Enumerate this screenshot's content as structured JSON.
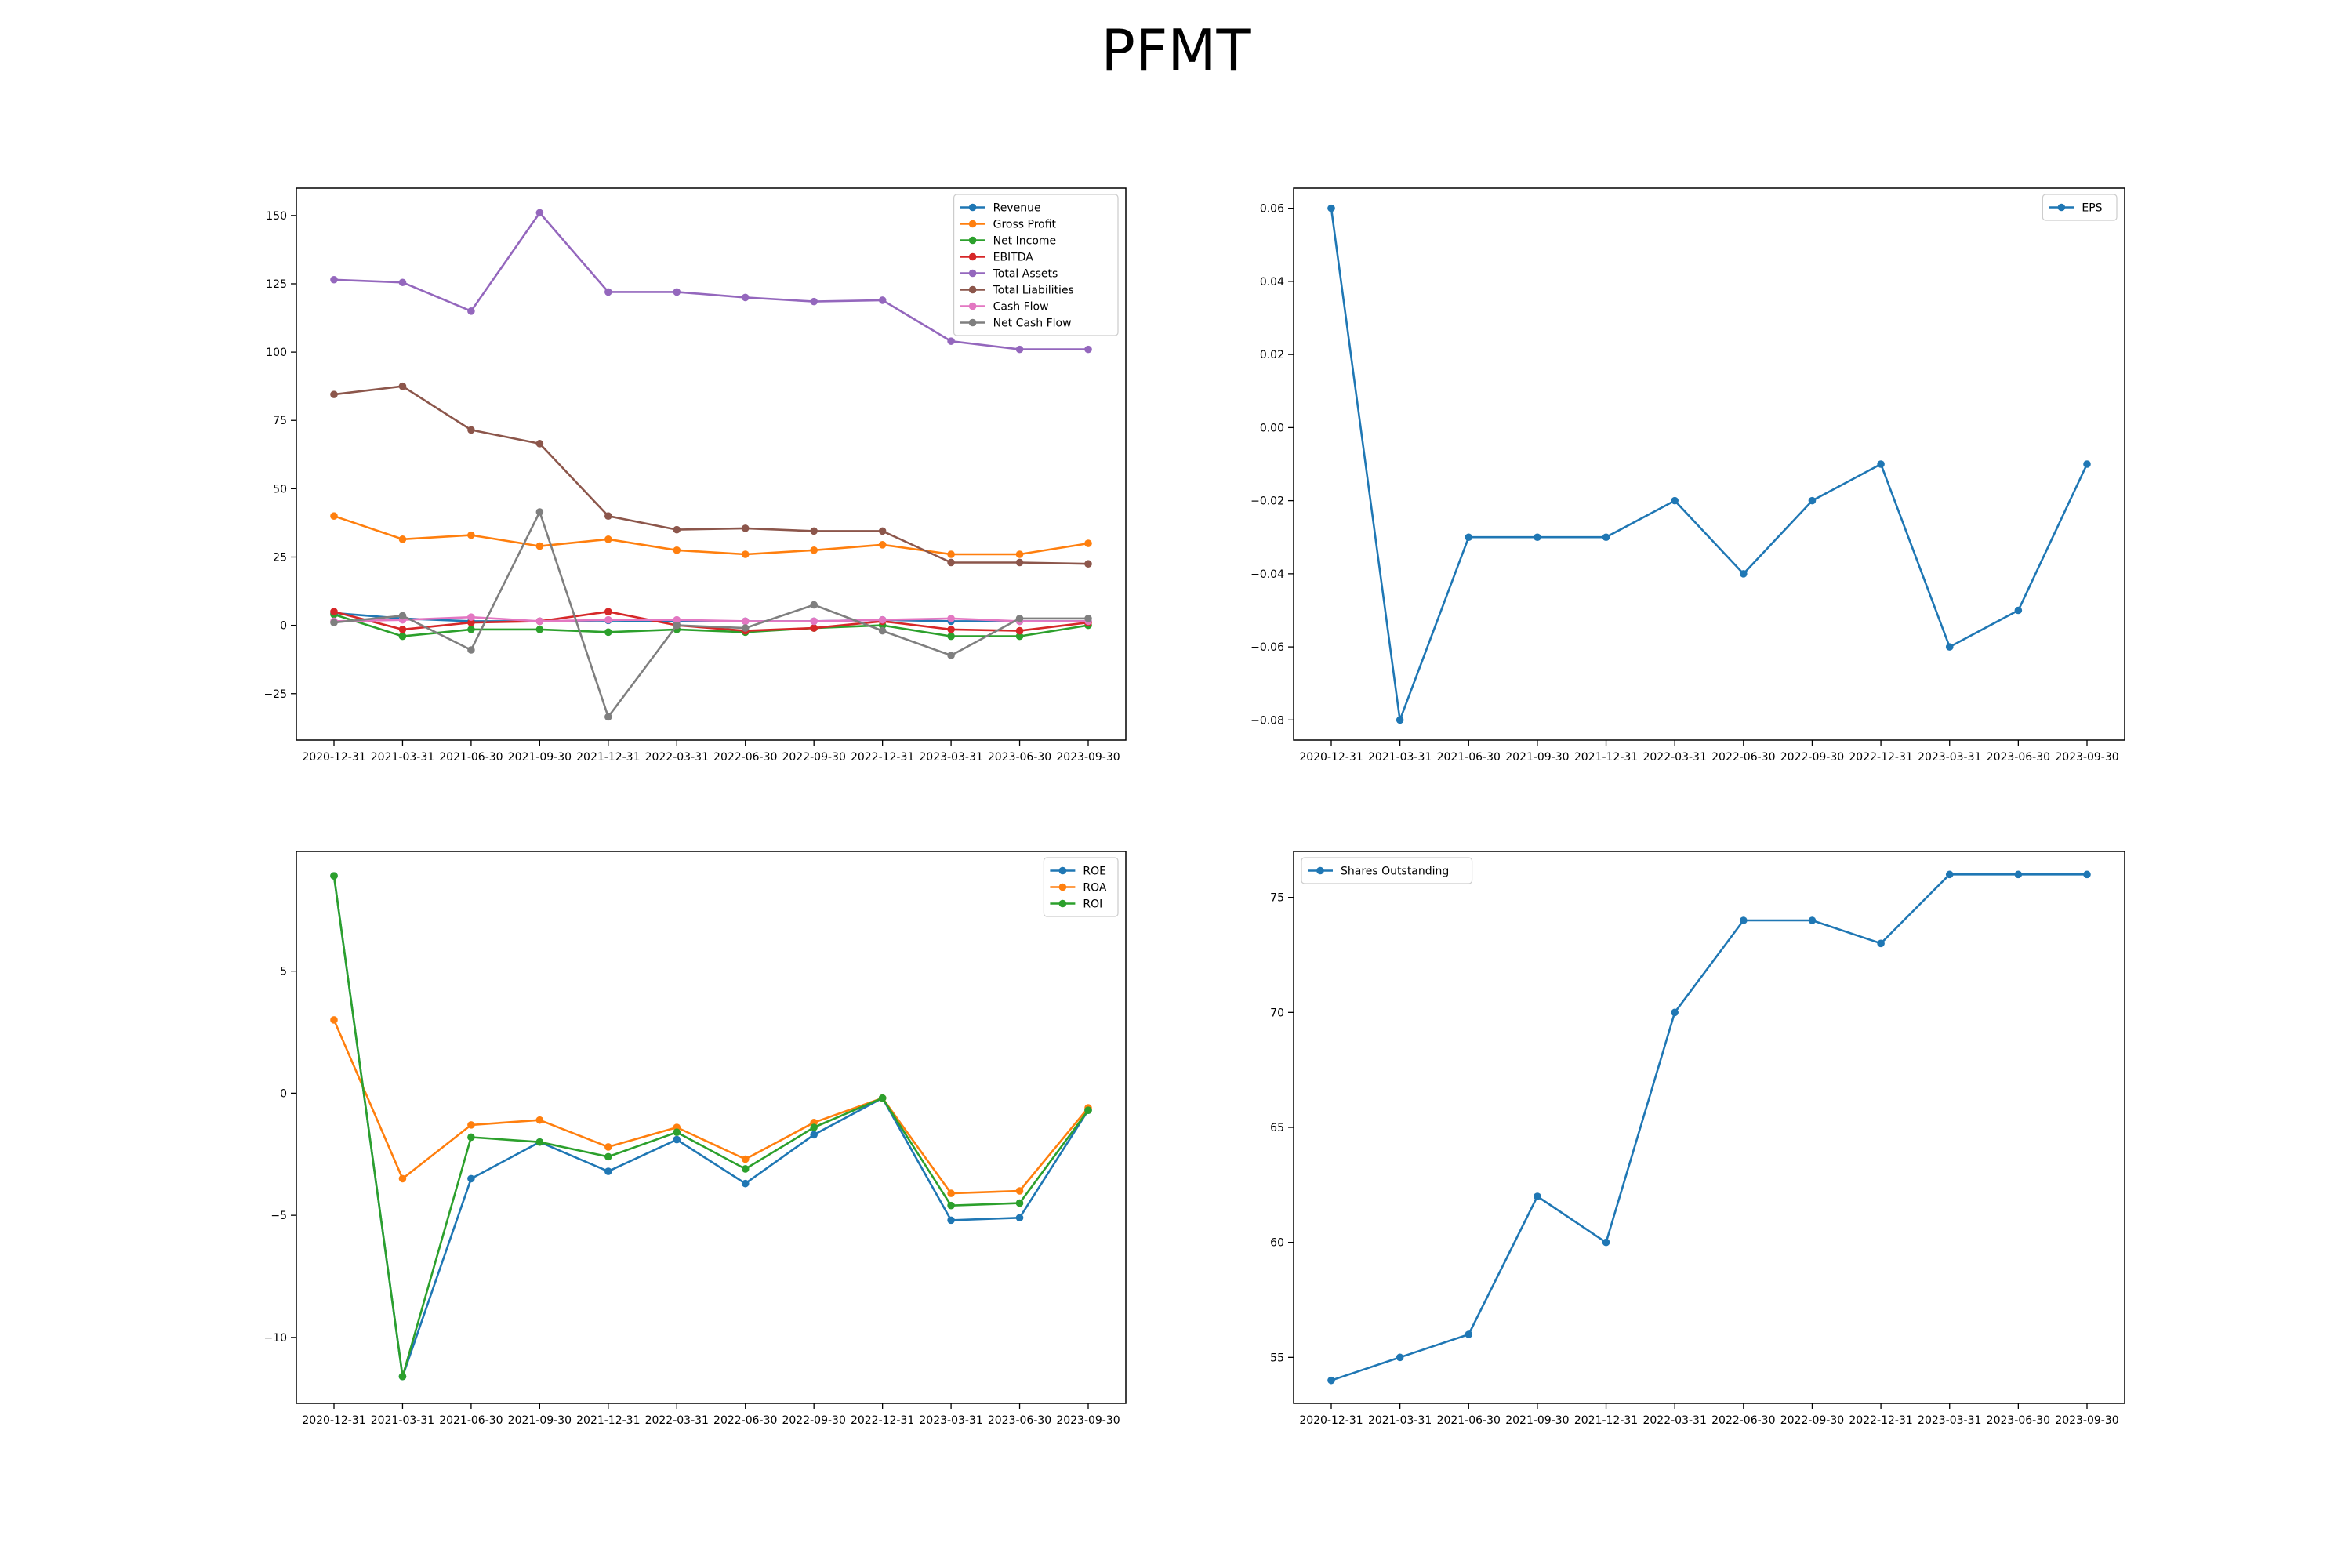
{
  "title": "PFMT",
  "x": [
    "2020-12-31",
    "2021-03-31",
    "2021-06-30",
    "2021-09-30",
    "2021-12-31",
    "2022-03-31",
    "2022-06-30",
    "2022-09-30",
    "2022-12-31",
    "2023-03-31",
    "2023-06-30",
    "2023-09-30"
  ],
  "colors": {
    "tab_blue": "#1f77b4",
    "tab_orange": "#ff7f0e",
    "tab_green": "#2ca02c",
    "tab_red": "#d62728",
    "tab_purple": "#9467bd",
    "tab_brown": "#8c564b",
    "tab_pink": "#e377c2",
    "tab_gray": "#7f7f7f"
  },
  "chart_data": [
    {
      "type": "line",
      "legend_position": "top-right",
      "ylim": [
        -42,
        160
      ],
      "yticks": [
        -25,
        0,
        25,
        50,
        75,
        100,
        125,
        150
      ],
      "series": [
        {
          "name": "Revenue",
          "color": "#1f77b4",
          "values": [
            4.5,
            2.5,
            1.5,
            1.5,
            1.8,
            1.5,
            1.5,
            1.5,
            2,
            1.5,
            1.5,
            1.5
          ]
        },
        {
          "name": "Gross Profit",
          "color": "#ff7f0e",
          "values": [
            40,
            31.5,
            33,
            29,
            31.5,
            27.5,
            26,
            27.5,
            29.5,
            26,
            26,
            30
          ]
        },
        {
          "name": "Net Income",
          "color": "#2ca02c",
          "values": [
            4,
            -4,
            -1.5,
            -1.5,
            -2.5,
            -1.5,
            -2.5,
            -1,
            0,
            -4,
            -4,
            0
          ]
        },
        {
          "name": "EBITDA",
          "color": "#d62728",
          "values": [
            5,
            -1.5,
            1,
            1.5,
            5,
            0,
            -2,
            -1,
            1.5,
            -1.5,
            -2,
            1
          ]
        },
        {
          "name": "Total Assets",
          "color": "#9467bd",
          "values": [
            126.5,
            125.5,
            115,
            151,
            122,
            122,
            120,
            118.5,
            119,
            104,
            101,
            101
          ]
        },
        {
          "name": "Total Liabilities",
          "color": "#8c564b",
          "values": [
            84.5,
            87.5,
            71.5,
            66.5,
            40,
            35,
            35.5,
            34.5,
            34.5,
            23,
            23,
            22.5
          ]
        },
        {
          "name": "Cash Flow",
          "color": "#e377c2",
          "values": [
            1.5,
            2,
            3,
            1.5,
            2,
            2,
            1.5,
            1.5,
            2,
            2.5,
            1.5,
            1.5
          ]
        },
        {
          "name": "Net Cash Flow",
          "color": "#7f7f7f",
          "values": [
            1,
            3.5,
            -9,
            41.5,
            -33.5,
            0,
            -1,
            7.5,
            -2,
            -11,
            2.5,
            2.5
          ]
        }
      ]
    },
    {
      "type": "line",
      "legend_position": "top-right",
      "ylim": [
        -0.0855,
        0.0655
      ],
      "yticks": [
        -0.08,
        -0.06,
        -0.04,
        -0.02,
        0.0,
        0.02,
        0.04,
        0.06
      ],
      "ytick_labels": [
        "−0.08",
        "−0.06",
        "−0.04",
        "−0.02",
        "0.00",
        "0.02",
        "0.04",
        "0.06"
      ],
      "series": [
        {
          "name": "EPS",
          "color": "#1f77b4",
          "values": [
            0.06,
            -0.08,
            -0.03,
            -0.03,
            -0.03,
            -0.02,
            -0.04,
            -0.02,
            -0.01,
            -0.06,
            -0.05,
            -0.01
          ]
        }
      ]
    },
    {
      "type": "line",
      "legend_position": "top-right",
      "ylim": [
        -12.7,
        9.9
      ],
      "yticks": [
        -10,
        -5,
        0,
        5
      ],
      "series": [
        {
          "name": "ROE",
          "color": "#1f77b4",
          "values": [
            8.9,
            -11.6,
            -3.5,
            -2,
            -3.2,
            -1.9,
            -3.7,
            -1.7,
            -0.2,
            -5.2,
            -5.1,
            -0.7
          ]
        },
        {
          "name": "ROA",
          "color": "#ff7f0e",
          "values": [
            3,
            -3.5,
            -1.3,
            -1.1,
            -2.2,
            -1.4,
            -2.7,
            -1.2,
            -0.2,
            -4.1,
            -4,
            -0.6
          ]
        },
        {
          "name": "ROI",
          "color": "#2ca02c",
          "values": [
            8.9,
            -11.6,
            -1.8,
            -2,
            -2.6,
            -1.6,
            -3.1,
            -1.4,
            -0.2,
            -4.6,
            -4.5,
            -0.7
          ]
        }
      ]
    },
    {
      "type": "line",
      "legend_position": "top-left",
      "ylim": [
        53,
        77
      ],
      "yticks": [
        55,
        60,
        65,
        70,
        75
      ],
      "series": [
        {
          "name": "Shares Outstanding",
          "color": "#1f77b4",
          "values": [
            54,
            55,
            56,
            62,
            60,
            70,
            74,
            74,
            73,
            76,
            76,
            76
          ]
        }
      ]
    }
  ]
}
